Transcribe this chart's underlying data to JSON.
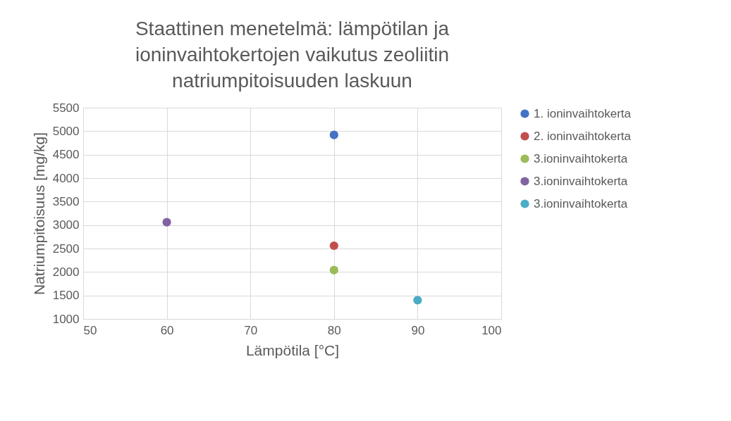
{
  "chart_data": {
    "type": "scatter",
    "title": "Staattinen menetelmä: lämpötilan ja ioninvaihtokertojen vaikutus zeoliitin natriumpitoisuuden laskuun",
    "xlabel": "Lämpötila [°C]",
    "ylabel": "Natriumpitoisuus [mg/kg]",
    "xlim": [
      50,
      100
    ],
    "xticks": [
      50,
      60,
      70,
      80,
      90,
      100
    ],
    "ylim": [
      1000,
      5500
    ],
    "yticks": [
      1000,
      1500,
      2000,
      2500,
      3000,
      3500,
      4000,
      4500,
      5000,
      5500
    ],
    "grid": true,
    "legend": "right",
    "marker": "circle",
    "series": [
      {
        "name": "1. ioninvaihtokerta",
        "color": "#4472c4",
        "x": [
          80
        ],
        "values": [
          4920
        ]
      },
      {
        "name": "2. ioninvaihtokerta",
        "color": "#c0504d",
        "x": [
          80
        ],
        "values": [
          2560
        ]
      },
      {
        "name": "3.ioninvaihtokerta",
        "color": "#9bbb59",
        "x": [
          80
        ],
        "values": [
          2040
        ]
      },
      {
        "name": "3.ioninvaihtokerta",
        "color": "#8064a2",
        "x": [
          60
        ],
        "values": [
          3060
        ]
      },
      {
        "name": "3.ioninvaihtokerta",
        "color": "#4bacc6",
        "x": [
          90
        ],
        "values": [
          1400
        ]
      }
    ]
  }
}
